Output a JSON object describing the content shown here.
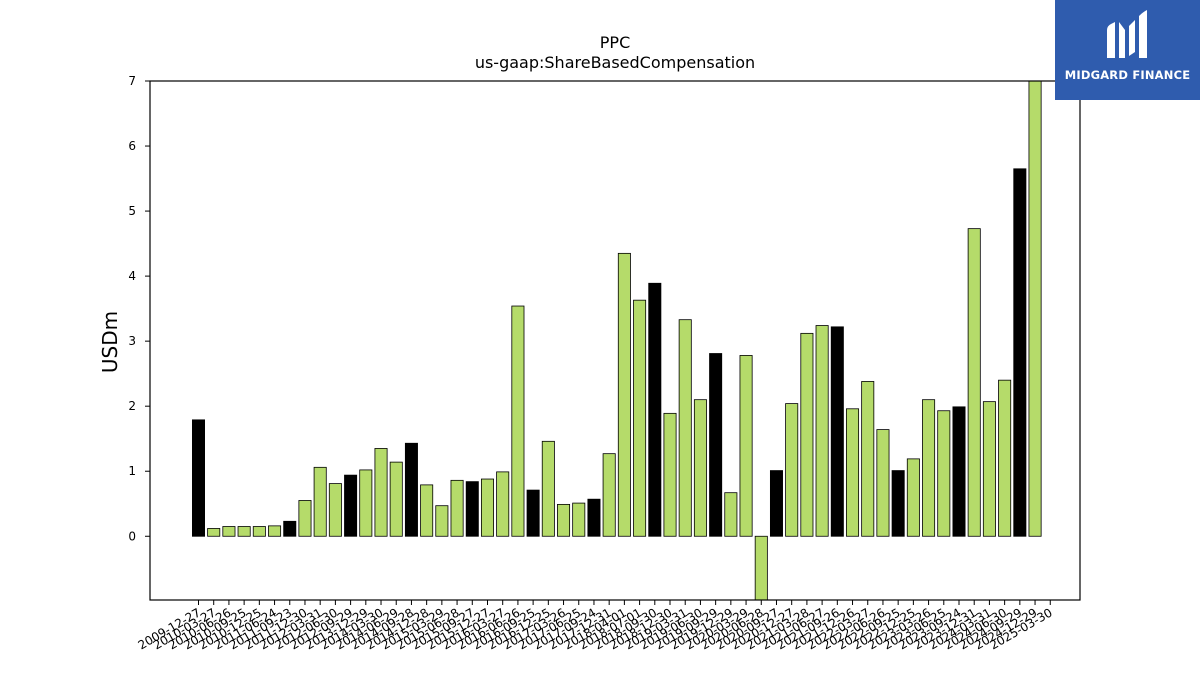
{
  "brand": {
    "name": "MIDGARD FINANCE",
    "bg_color": "#2f5cae",
    "icon": "midgard-logo-icon"
  },
  "chart_data": {
    "type": "bar",
    "title": "PPC",
    "subtitle": "us-gaap:ShareBasedCompensation",
    "xlabel": "",
    "ylabel": "USDm",
    "ylim": [
      -0.98,
      7.0
    ],
    "yticks": [
      0,
      1,
      2,
      3,
      4,
      5,
      6,
      7
    ],
    "grid": false,
    "colors": {
      "normal": "#b5db6a",
      "annual": "#000000",
      "edge": "#000000"
    },
    "categories": [
      "2009-12-27",
      "2010-03-27",
      "2010-06-26",
      "2010-09-25",
      "2010-12-25",
      "2011-06-24",
      "2011-09-23",
      "2011-12-30",
      "2012-03-31",
      "2012-06-30",
      "2012-09-29",
      "2013-12-29",
      "2014-03-30",
      "2014-06-29",
      "2014-09-28",
      "2014-12-28",
      "2015-03-29",
      "2015-06-28",
      "2015-09-27",
      "2015-12-27",
      "2016-03-27",
      "2016-06-26",
      "2016-09-25",
      "2016-12-25",
      "2017-03-26",
      "2017-06-25",
      "2017-09-24",
      "2017-12-31",
      "2018-04-01",
      "2018-07-01",
      "2018-09-30",
      "2018-12-30",
      "2019-03-31",
      "2019-06-30",
      "2019-09-29",
      "2019-12-29",
      "2020-03-29",
      "2020-06-28",
      "2020-09-27",
      "2020-12-27",
      "2021-03-28",
      "2021-06-27",
      "2021-09-26",
      "2021-12-26",
      "2022-03-27",
      "2022-06-26",
      "2022-09-25",
      "2022-12-25",
      "2023-03-26",
      "2023-06-25",
      "2023-09-24",
      "2023-12-31",
      "2024-03-31",
      "2024-06-30",
      "2024-09-29",
      "2024-12-29",
      "2025-03-30"
    ],
    "values": [
      1.79,
      0.12,
      0.15,
      0.15,
      0.15,
      0.16,
      0.23,
      0.55,
      1.06,
      0.81,
      0.94,
      1.02,
      1.35,
      1.14,
      1.43,
      0.79,
      0.47,
      0.86,
      0.84,
      0.88,
      0.99,
      3.54,
      0.71,
      1.46,
      0.49,
      0.51,
      0.57,
      1.27,
      4.35,
      3.63,
      3.89,
      1.89,
      3.33,
      2.1,
      2.81,
      0.67,
      2.78,
      -0.98,
      1.01,
      2.04,
      3.12,
      3.24,
      3.22,
      1.96,
      2.38,
      1.64,
      1.01,
      1.19,
      2.1,
      1.93,
      1.99,
      4.73,
      2.07,
      2.4,
      5.65,
      7.0,
      0
    ],
    "annual": [
      true,
      false,
      false,
      false,
      false,
      false,
      true,
      false,
      false,
      false,
      true,
      false,
      false,
      false,
      true,
      false,
      false,
      false,
      true,
      false,
      false,
      false,
      true,
      false,
      false,
      false,
      true,
      false,
      false,
      false,
      true,
      false,
      false,
      false,
      true,
      false,
      false,
      false,
      true,
      false,
      false,
      false,
      true,
      false,
      false,
      false,
      true,
      false,
      false,
      false,
      true,
      false,
      false,
      false,
      true,
      false,
      false
    ]
  }
}
